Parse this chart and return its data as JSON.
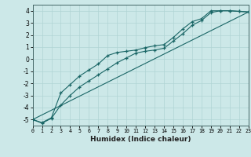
{
  "xlabel": "Humidex (Indice chaleur)",
  "bg_color": "#cce8e8",
  "grid_color": "#b0d4d4",
  "line_color": "#1a6666",
  "xlim": [
    0,
    23
  ],
  "ylim": [
    -5.5,
    4.5
  ],
  "xticks": [
    0,
    1,
    2,
    3,
    4,
    5,
    6,
    7,
    8,
    9,
    10,
    11,
    12,
    13,
    14,
    15,
    16,
    17,
    18,
    19,
    20,
    21,
    22,
    23
  ],
  "yticks": [
    -5,
    -4,
    -3,
    -2,
    -1,
    0,
    1,
    2,
    3,
    4
  ],
  "line1_x": [
    0,
    1,
    2,
    3,
    4,
    5,
    6,
    7,
    8,
    9,
    10,
    11,
    12,
    13,
    14,
    15,
    16,
    17,
    18,
    19,
    20,
    21,
    22,
    23
  ],
  "line1_y": [
    -5.0,
    -5.3,
    -4.9,
    -3.8,
    -3.0,
    -2.3,
    -1.8,
    -1.3,
    -0.8,
    -0.3,
    0.1,
    0.5,
    0.65,
    0.75,
    0.9,
    1.5,
    2.1,
    2.8,
    3.2,
    3.85,
    4.0,
    4.0,
    3.95,
    3.9
  ],
  "line2_x": [
    0,
    1,
    2,
    3,
    4,
    5,
    6,
    7,
    8,
    9,
    10,
    11,
    12,
    13,
    14,
    15,
    16,
    17,
    18,
    19,
    20,
    21,
    22,
    23
  ],
  "line2_y": [
    -5.0,
    -5.25,
    -4.85,
    -2.8,
    -2.1,
    -1.4,
    -0.9,
    -0.4,
    0.3,
    0.55,
    0.65,
    0.75,
    0.95,
    1.1,
    1.2,
    1.8,
    2.5,
    3.1,
    3.35,
    4.0,
    4.0,
    4.0,
    3.95,
    3.9
  ],
  "line3_x": [
    0,
    23
  ],
  "line3_y": [
    -5.0,
    3.9
  ]
}
